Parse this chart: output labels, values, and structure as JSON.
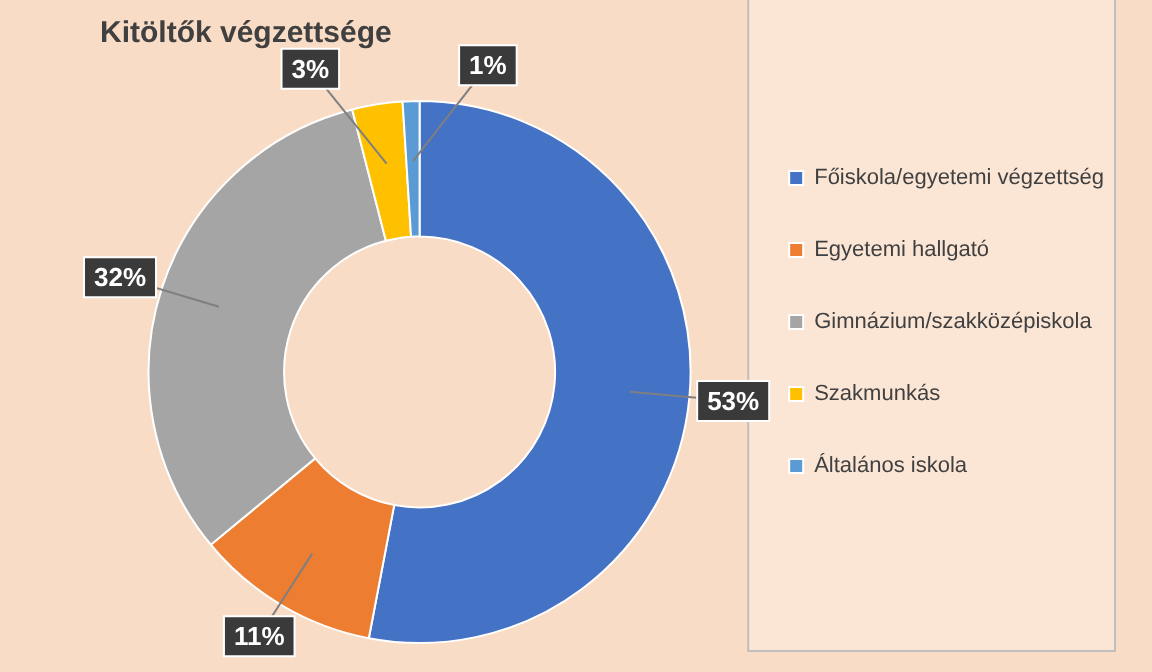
{
  "chart_data": {
    "type": "donut",
    "title": "Kitöltők végzettsége",
    "categories": [
      "Főiskola/egyetemi végzettség",
      "Egyetemi hallgató",
      "Gimnázium/szakközépiskola",
      "Szakmunkás",
      "Általános iskola"
    ],
    "values": [
      53,
      11,
      32,
      3,
      1
    ],
    "colors": [
      "#4472c4",
      "#ed7d31",
      "#a5a5a5",
      "#ffc000",
      "#5b9bd5"
    ],
    "value_labels": [
      "53%",
      "11%",
      "32%",
      "3%",
      "1%"
    ],
    "legend": "right"
  }
}
